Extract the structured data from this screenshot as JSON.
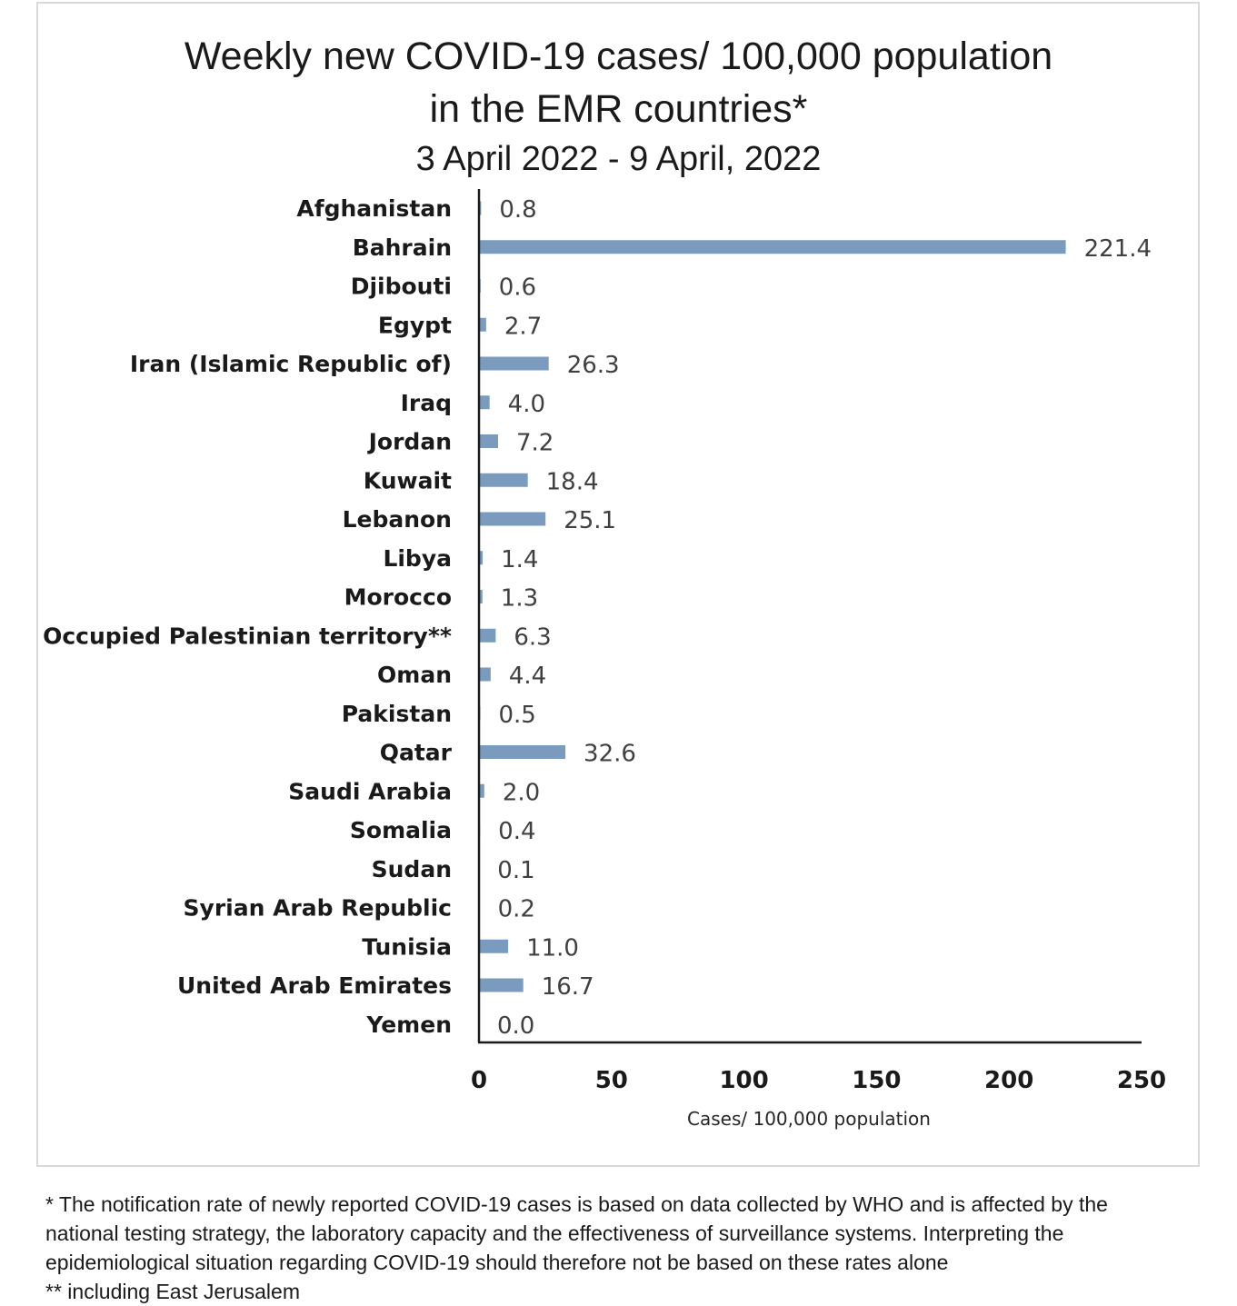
{
  "chart_data": {
    "type": "bar",
    "orientation": "horizontal",
    "title": "Weekly new COVID-19 cases/ 100,000 population",
    "title_line2": "in the EMR countries*",
    "subtitle": "3 April 2022 - 9 April, 2022",
    "xlabel": "Cases/ 100,000 population",
    "xlim": [
      0,
      250
    ],
    "xticks": [
      0,
      50,
      100,
      150,
      200,
      250
    ],
    "grid": false,
    "bar_color": "#7a9bbd",
    "categories": [
      "Afghanistan",
      "Bahrain",
      "Djibouti",
      "Egypt",
      "Iran (Islamic Republic of)",
      "Iraq",
      "Jordan",
      "Kuwait",
      "Lebanon",
      "Libya",
      "Morocco",
      "Occupied Palestinian territory**",
      "Oman",
      "Pakistan",
      "Qatar",
      "Saudi Arabia",
      "Somalia",
      "Sudan",
      "Syrian Arab Republic",
      "Tunisia",
      "United Arab Emirates",
      "Yemen"
    ],
    "values": [
      0.8,
      221.4,
      0.6,
      2.7,
      26.3,
      4.0,
      7.2,
      18.4,
      25.1,
      1.4,
      1.3,
      6.3,
      4.4,
      0.5,
      32.6,
      2.0,
      0.4,
      0.1,
      0.2,
      11.0,
      16.7,
      0.0
    ],
    "value_labels": [
      "0.8",
      "221.4",
      "0.6",
      "2.7",
      "26.3",
      "4.0",
      "7.2",
      "18.4",
      "25.1",
      "1.4",
      "1.3",
      "6.3",
      "4.4",
      "0.5",
      "32.6",
      "2.0",
      "0.4",
      "0.1",
      "0.2",
      "11.0",
      "16.7",
      "0.0"
    ]
  },
  "footnotes": {
    "line1": "* The notification rate of newly reported COVID-19 cases is based on data collected by WHO and is affected by the",
    "line2": "national testing strategy, the laboratory capacity and the effectiveness of surveillance systems. Interpreting the",
    "line3": "epidemiological situation regarding COVID-19 should therefore not be based on these rates alone",
    "line4": "** including East Jerusalem"
  }
}
